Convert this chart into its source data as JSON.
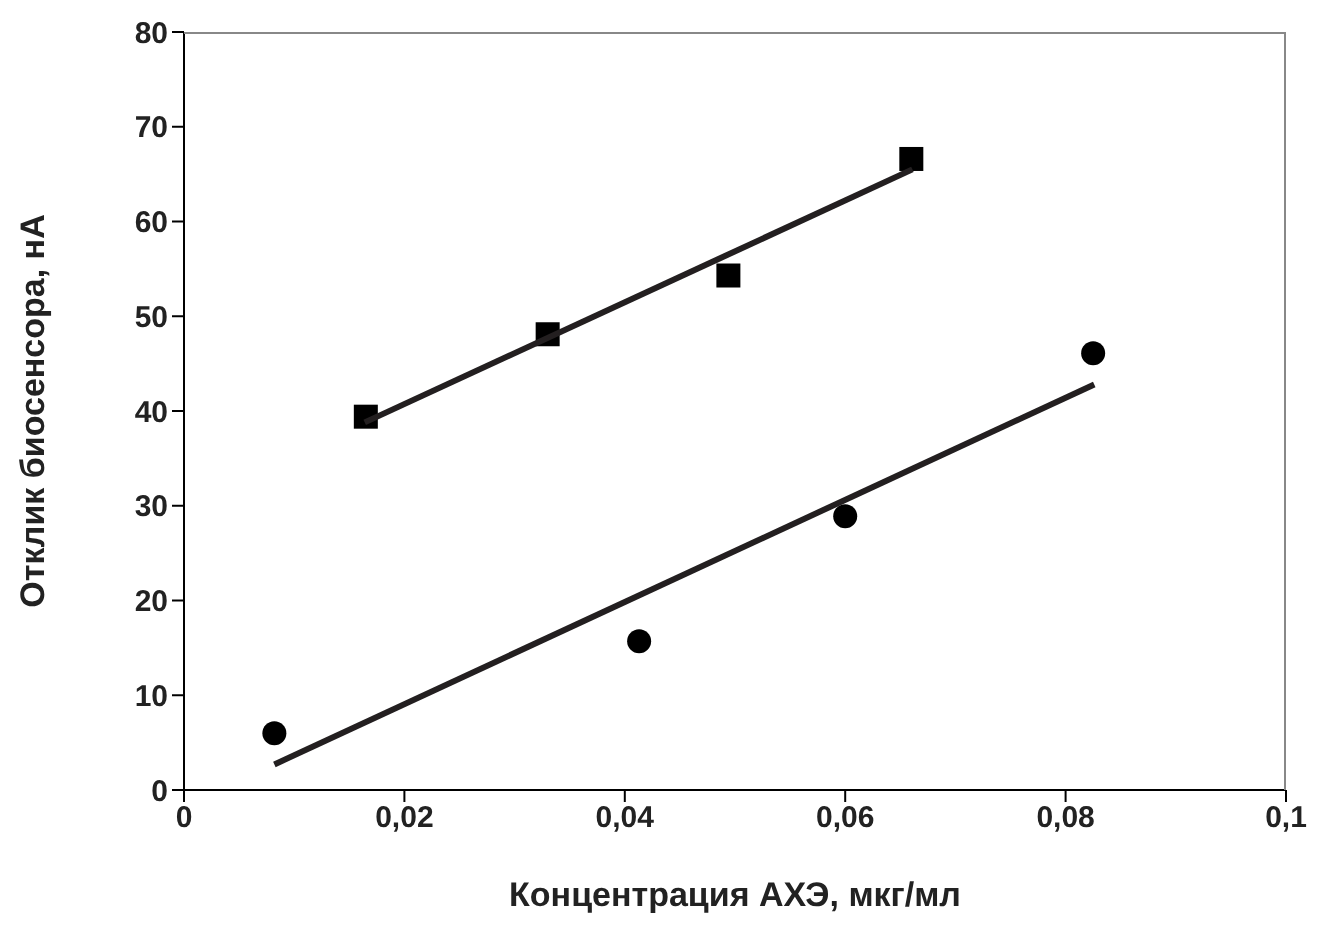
{
  "chart_data": {
    "type": "scatter",
    "xlabel": "Концентрация АХЭ, мкг/мл",
    "ylabel": "Отклик биосенсора, нА",
    "series": [
      {
        "marker": "square",
        "color": "#000000",
        "x": [
          0.0165,
          0.033,
          0.0494,
          0.066
        ],
        "values": [
          39.4,
          48.1,
          54.3,
          66.6
        ]
      },
      {
        "type": "line",
        "marker": "none",
        "color": "#231f20",
        "x": [
          0.0164,
          0.0661
        ],
        "values": [
          38.8,
          65.5
        ]
      },
      {
        "marker": "circle",
        "color": "#000000",
        "x": [
          0.0082,
          0.0413,
          0.06,
          0.0825
        ],
        "values": [
          6.0,
          15.7,
          28.9,
          46.1
        ]
      },
      {
        "type": "line",
        "marker": "none",
        "color": "#231f20",
        "x": [
          0.0082,
          0.0826
        ],
        "values": [
          2.7,
          42.8
        ]
      }
    ],
    "xlim": [
      0,
      0.1
    ],
    "xticks": [
      0,
      {
        "value": 0.02,
        "label": "0,02"
      },
      {
        "value": 0.04,
        "label": "0,04"
      },
      {
        "value": 0.06,
        "label": "0,06"
      },
      {
        "value": 0.08,
        "label": "0,08"
      },
      {
        "value": 0.1,
        "label": "0,1"
      }
    ],
    "ylim": [
      0,
      80
    ],
    "yticks": [
      0,
      10,
      20,
      30,
      40,
      50,
      60,
      70,
      80
    ],
    "grid": false,
    "legend": false
  }
}
